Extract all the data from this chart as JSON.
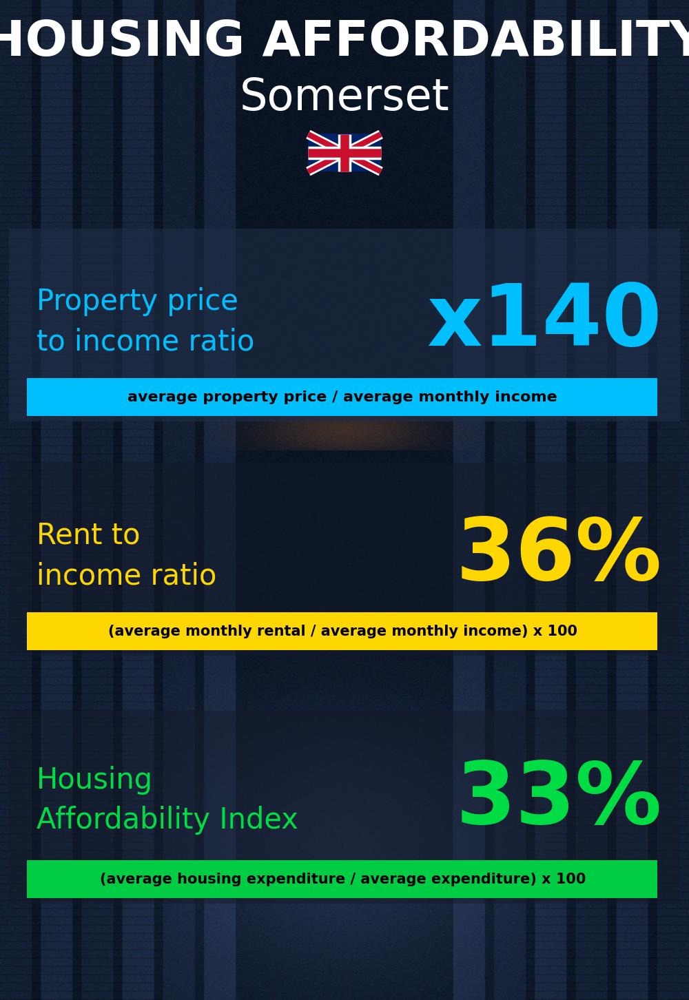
{
  "title_line1": "HOUSING AFFORDABILITY",
  "title_line2": "Somerset",
  "flag_emoji": "🇬🇧",
  "section1_label": "Property price\nto income ratio",
  "section1_value": "x140",
  "section1_label_color": "#00bfff",
  "section1_value_color": "#00bfff",
  "section1_formula": "average property price / average monthly income",
  "section1_formula_bg": "#00bfff",
  "section2_label": "Rent to\nincome ratio",
  "section2_value": "36%",
  "section2_label_color": "#FFD700",
  "section2_value_color": "#FFD700",
  "section2_formula": "(average monthly rental / average monthly income) x 100",
  "section2_formula_bg": "#FFD700",
  "section3_label": "Housing\nAffordability Index",
  "section3_value": "33%",
  "section3_label_color": "#00dd44",
  "section3_value_color": "#00dd44",
  "section3_formula": "(average housing expenditure / average expenditure) x 100",
  "section3_formula_bg": "#00cc44",
  "bg_color": "#0a1628",
  "title_color": "#ffffff",
  "formula_text_color": "#000000",
  "fig_width": 10.0,
  "fig_height": 14.52,
  "dpi": 100
}
